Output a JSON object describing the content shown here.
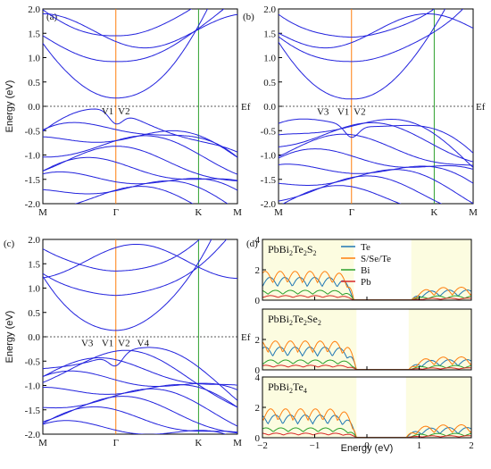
{
  "colors": {
    "band": "#2222dd",
    "gamma_line": "#ff7f0e",
    "k_line": "#2ca02c",
    "fermi_line": "#222222",
    "shade": "#fcfce0",
    "Te": "#1f77b4",
    "SSeTe": "#ff7f0e",
    "Bi": "#2ca02c",
    "Pb": "#d62728"
  },
  "chart_data": [
    {
      "id": "a",
      "type": "line",
      "panel_label": "(a)",
      "ylabel": "Energy (eV)",
      "ylim": [
        -2.0,
        2.0
      ],
      "yticks": [
        "2.0",
        "1.5",
        "1.0",
        "0.5",
        "0.0",
        "-0.5",
        "-1.0",
        "-1.5",
        "-2.0"
      ],
      "ytick_values": [
        2.0,
        1.5,
        1.0,
        0.5,
        0.0,
        -0.5,
        -1.0,
        -1.5,
        -2.0
      ],
      "kpoints": [
        "M",
        "Γ",
        "K",
        "M"
      ],
      "fermi_label": "Ef",
      "valley_labels": [
        {
          "text": "V1",
          "k": -0.12,
          "e": -0.09
        },
        {
          "text": "V2",
          "k": 0.12,
          "e": -0.09
        }
      ],
      "bands": {
        "conduction_min": [
          0.17,
          0.92,
          1.45
        ],
        "valence_max": [
          -0.2,
          -0.35,
          -0.55,
          -0.75,
          -1.0,
          -1.2,
          -1.4,
          -1.6,
          -1.8
        ]
      }
    },
    {
      "id": "b",
      "type": "line",
      "panel_label": "(b)",
      "ylabel": "",
      "ylim": [
        -2.0,
        2.0
      ],
      "yticks": [
        "2.0",
        "1.5",
        "1.0",
        "0.5",
        "0.0",
        "-0.5",
        "-1.0",
        "-1.5",
        "-2.0"
      ],
      "ytick_values": [
        2.0,
        1.5,
        1.0,
        0.5,
        0.0,
        -0.5,
        -1.0,
        -1.5,
        -2.0
      ],
      "kpoints": [
        "M",
        "Γ",
        "K",
        "M"
      ],
      "fermi_label": "Ef",
      "valley_labels": [
        {
          "text": "V3",
          "k": -0.42,
          "e": -0.1
        },
        {
          "text": "V1",
          "k": -0.12,
          "e": -0.1
        },
        {
          "text": "V2",
          "k": 0.12,
          "e": -0.1
        }
      ],
      "bands": {
        "conduction_min": [
          0.15,
          0.92,
          1.42
        ],
        "valence_max": [
          -0.22,
          -0.3,
          -0.5,
          -0.75,
          -1.0,
          -1.2,
          -1.4,
          -1.6,
          -1.8
        ]
      }
    },
    {
      "id": "c",
      "type": "line",
      "panel_label": "(c)",
      "ylabel": "Energy (eV)",
      "ylim": [
        -2.0,
        2.0
      ],
      "yticks": [
        "2.0",
        "1.5",
        "1.0",
        "0.5",
        "0.0",
        "-0.5",
        "-1.0",
        "-1.5",
        "-2.0"
      ],
      "ytick_values": [
        2.0,
        1.5,
        1.0,
        0.5,
        0.0,
        -0.5,
        -1.0,
        -1.5,
        -2.0
      ],
      "kpoints": [
        "M",
        "Γ",
        "K",
        "M"
      ],
      "fermi_label": "Ef",
      "valley_labels": [
        {
          "text": "V3",
          "k": -0.42,
          "e": -0.12
        },
        {
          "text": "V1",
          "k": -0.12,
          "e": -0.12
        },
        {
          "text": "V2",
          "k": 0.12,
          "e": -0.12
        },
        {
          "text": "V4",
          "k": 0.4,
          "e": -0.12
        }
      ],
      "bands": {
        "conduction_min": [
          0.13,
          0.85,
          1.35
        ],
        "valence_max": [
          -0.3,
          -0.45,
          -0.6,
          -0.8,
          -1.0,
          -1.2,
          -1.4,
          -1.6,
          -1.8
        ]
      }
    },
    {
      "id": "d",
      "type": "area",
      "panel_label": "(d)",
      "xlabel": "Energy (eV)",
      "xlim": [
        -2,
        2
      ],
      "xticks": [
        "−2",
        "−1",
        "0",
        "1",
        "2"
      ],
      "xtick_values": [
        -2,
        -1,
        0,
        1,
        2
      ],
      "legend": [
        "Te",
        "S/Se/Te",
        "Bi",
        "Pb"
      ],
      "subplots": [
        {
          "title_parts": [
            "PbBi",
            "2",
            "Te",
            "2",
            "S",
            "2"
          ],
          "ylim": [
            0,
            4
          ],
          "yticks": [
            "4",
            "2",
            "0"
          ],
          "ytick_values": [
            4,
            2,
            0
          ],
          "gap": [
            -0.25,
            0.85
          ]
        },
        {
          "title_parts": [
            "PbBi",
            "2",
            "Te",
            "2",
            "Se",
            "2"
          ],
          "ylim": [
            0,
            4
          ],
          "yticks": [
            "2",
            "0"
          ],
          "ytick_values": [
            2,
            0
          ],
          "gap": [
            -0.2,
            0.8
          ]
        },
        {
          "title_parts": [
            "PbBi",
            "2",
            "Te",
            "4",
            "",
            ""
          ],
          "ylim": [
            0,
            4
          ],
          "yticks": [
            "4",
            "2",
            "0"
          ],
          "ytick_values": [
            4,
            2,
            0
          ],
          "gap": [
            -0.2,
            0.75
          ]
        }
      ]
    }
  ]
}
